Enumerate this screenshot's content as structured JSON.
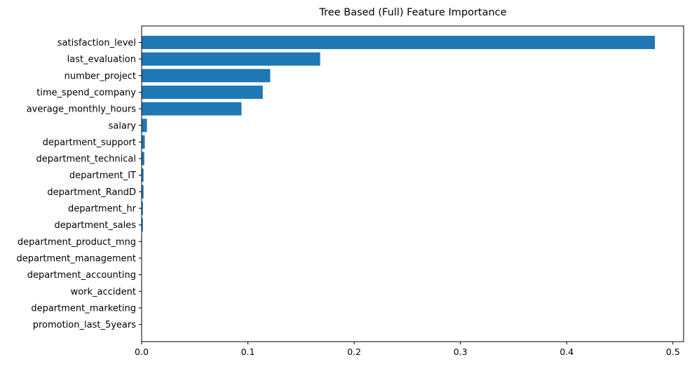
{
  "chart_data": {
    "type": "bar",
    "orientation": "horizontal",
    "title": "Tree Based (Full) Feature Importance",
    "xlabel": "",
    "ylabel": "",
    "xlim": [
      0,
      0.51
    ],
    "xticks": [
      "0.0",
      "0.1",
      "0.2",
      "0.3",
      "0.4",
      "0.5"
    ],
    "bar_color": "#1f77b4",
    "categories": [
      "satisfaction_level",
      "last_evaluation",
      "number_project",
      "time_spend_company",
      "average_monthly_hours",
      "salary",
      "department_support",
      "department_technical",
      "department_IT",
      "department_RandD",
      "department_hr",
      "department_sales",
      "department_product_mng",
      "department_management",
      "department_accounting",
      "work_accident",
      "department_marketing",
      "promotion_last_5years"
    ],
    "values": [
      0.483,
      0.168,
      0.121,
      0.114,
      0.094,
      0.005,
      0.003,
      0.0025,
      0.0018,
      0.0018,
      0.0012,
      0.0012,
      0.0004,
      0.0003,
      0.0003,
      0.0002,
      0.0002,
      0.0001
    ]
  }
}
